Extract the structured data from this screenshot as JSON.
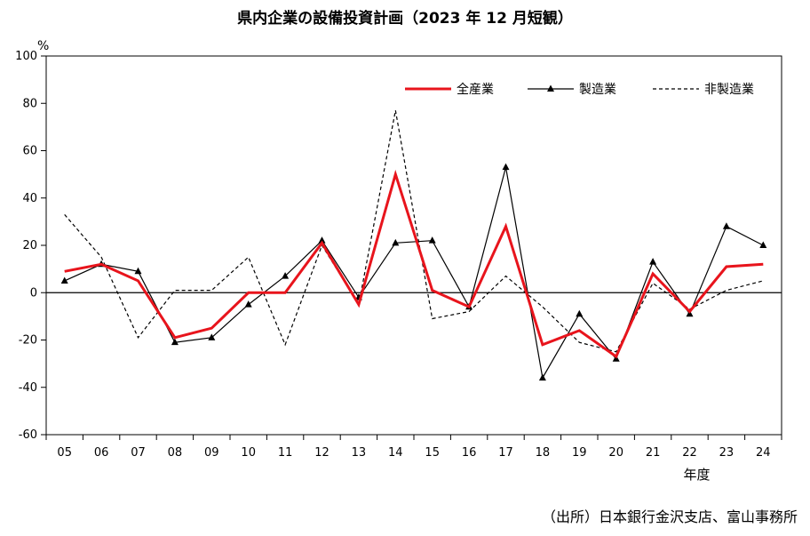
{
  "chart_data": {
    "type": "line",
    "title": "県内企業の設備投資計画（2023 年 12 月短観）",
    "ylabel": "%",
    "xlabel": "年度",
    "categories": [
      "05",
      "06",
      "07",
      "08",
      "09",
      "10",
      "11",
      "12",
      "13",
      "14",
      "15",
      "16",
      "17",
      "18",
      "19",
      "20",
      "21",
      "22",
      "23",
      "24"
    ],
    "ylim": [
      -60,
      100
    ],
    "yticks": [
      100,
      80,
      60,
      40,
      20,
      0,
      -20,
      -40,
      -60
    ],
    "grid": false,
    "legend_position": "top-right",
    "series": [
      {
        "name": "全産業",
        "color": "#e8141c",
        "style": "solid-thick",
        "values": [
          9,
          12,
          5,
          -19,
          -15,
          0,
          0,
          21,
          -5,
          50,
          1,
          -6,
          28,
          -22,
          -16,
          -27,
          8,
          -8,
          11,
          12
        ]
      },
      {
        "name": "製造業",
        "color": "#000000",
        "style": "solid-marker-triangle",
        "values": [
          5,
          12,
          9,
          -21,
          -19,
          -5,
          7,
          22,
          -2,
          21,
          22,
          -6,
          53,
          -36,
          -9,
          -28,
          13,
          -9,
          28,
          20
        ]
      },
      {
        "name": "非製造業",
        "color": "#000000",
        "style": "dashed",
        "values": [
          33,
          15,
          -19,
          1,
          1,
          15,
          -22,
          20,
          -5,
          77,
          -11,
          -8,
          7,
          -6,
          -21,
          -25,
          4,
          -7,
          1,
          5
        ]
      }
    ]
  },
  "source_note": "（出所）日本銀行金沢支店、富山事務所"
}
